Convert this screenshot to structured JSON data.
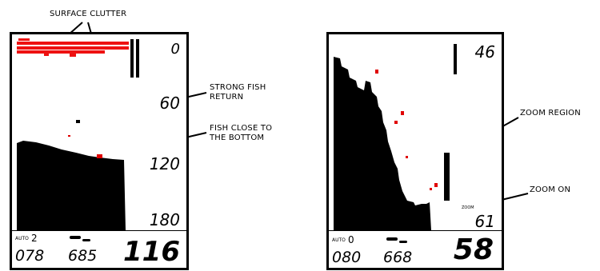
{
  "callouts": {
    "surface_clutter": "SURFACE CLUTTER",
    "strong_fish_line1": "STRONG FISH",
    "strong_fish_line2": "RETURN",
    "fish_bottom_line1": "FISH CLOSE TO",
    "fish_bottom_line2": "THE BOTTOM",
    "zoom_region": "ZOOM REGION",
    "zoom_on": "ZOOM ON"
  },
  "left_screen": {
    "depth_scale": [
      "0",
      "60",
      "120",
      "180"
    ],
    "mode_label": "AUTO",
    "mode_value": "2",
    "readout_left": "078",
    "readout_mid": "685",
    "readout_big": "116"
  },
  "right_screen": {
    "top_depth": "46",
    "zoom_tag": "ZOOM",
    "bottom_depth": "61",
    "mode_label": "AUTO",
    "mode_value": "0",
    "readout_left": "080",
    "readout_mid": "668",
    "readout_big": "58"
  },
  "colors": {
    "fish_return": "#e00000",
    "clutter": "#ee1111",
    "bottom": "#000000"
  }
}
